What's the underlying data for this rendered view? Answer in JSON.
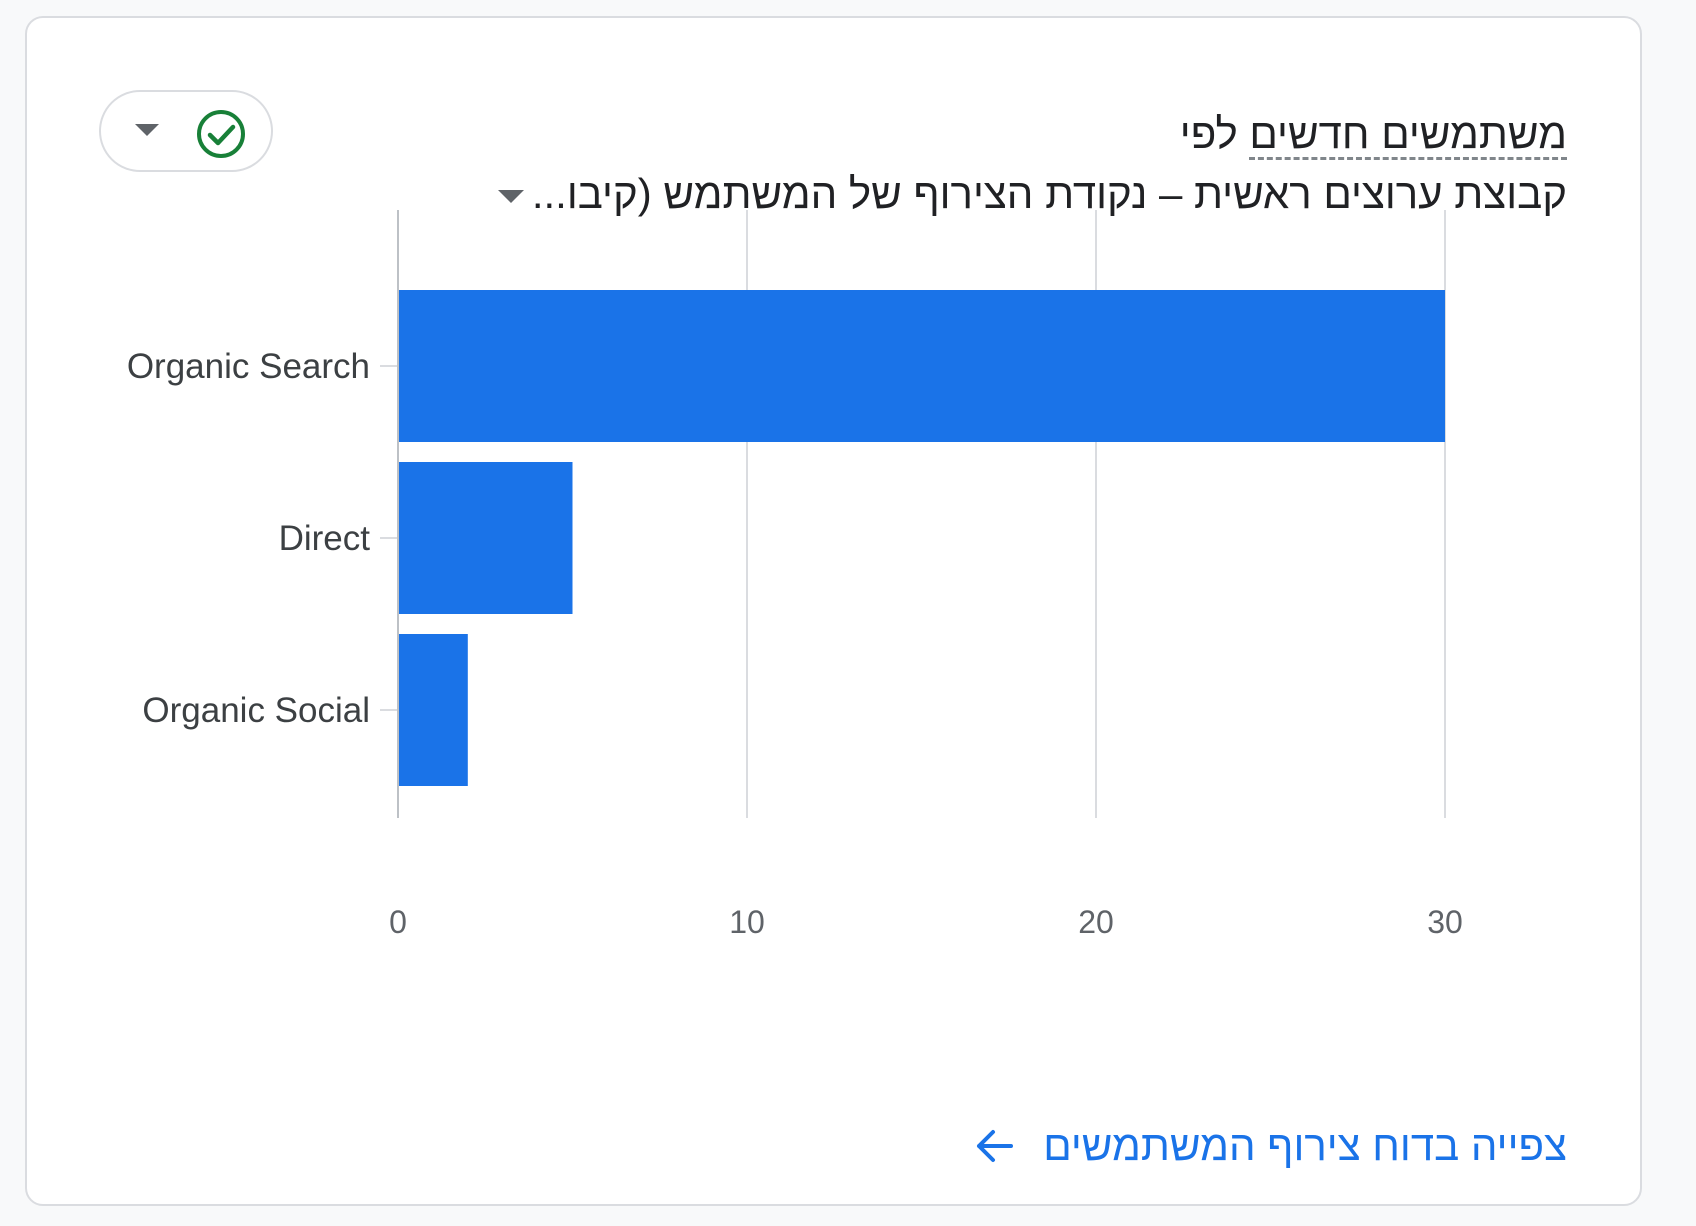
{
  "card": {
    "title_prefix": "",
    "title_metric": "משתמשים חדשים",
    "title_suffix": " לפי",
    "dimension": "קבוצת ערוצים ראשית – נקודת הצירוף של המשתמש (קיבו...",
    "link_label": "צפייה בדוח צירוף המשתמשים",
    "status_icon": "check-circle-icon",
    "status_color": "#188038"
  },
  "chart_data": {
    "type": "bar",
    "orientation": "horizontal",
    "categories": [
      "Organic Search",
      "Direct",
      "Organic Social"
    ],
    "values": [
      30,
      5,
      2
    ],
    "xlim": [
      0,
      30
    ],
    "x_ticks": [
      "0",
      "10",
      "20",
      "30"
    ],
    "grid": true,
    "bar_color": "#1a73e8",
    "title": "",
    "xlabel": "",
    "ylabel": ""
  }
}
